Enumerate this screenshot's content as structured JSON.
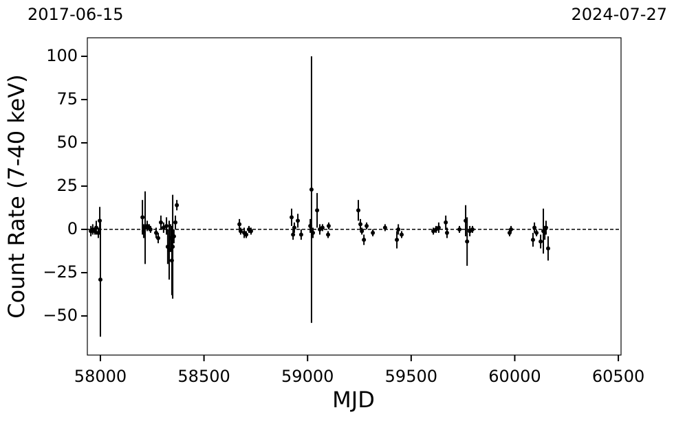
{
  "chart_data": {
    "type": "scatter",
    "top_left_label": "2017-06-15",
    "top_right_label": "2024-07-27",
    "x_label": "MJD",
    "y_label": "Count Rate (7-40 keV)",
    "color": "#000000",
    "hline": 0,
    "xlim": [
      57937,
      60513
    ],
    "ylim": [
      -72.6,
      110.7
    ],
    "xticks": [
      58000,
      58500,
      59000,
      59500,
      60000,
      60500
    ],
    "yticks": [
      {
        "value": -50,
        "label": "−50"
      },
      {
        "value": -25,
        "label": "−25"
      },
      0,
      25,
      50,
      75,
      100
    ],
    "x": [
      57954,
      57963,
      57973,
      57980,
      57990,
      57997,
      58000,
      58203,
      58209,
      58216,
      58226,
      58236,
      58242,
      58269,
      58279,
      58292,
      58305,
      58319,
      58325,
      58332,
      58339,
      58345,
      58349,
      58355,
      58362,
      58369,
      58671,
      58677,
      58694,
      58704,
      58717,
      58727,
      58923,
      58930,
      58936,
      58953,
      58969,
      59013,
      59019,
      59026,
      59046,
      59059,
      59072,
      59099,
      59102,
      59245,
      59255,
      59262,
      59272,
      59285,
      59315,
      59374,
      59431,
      59438,
      59454,
      59607,
      59620,
      59633,
      59667,
      59673,
      59733,
      59763,
      59770,
      59783,
      59796,
      59975,
      59982,
      60088,
      60095,
      60105,
      60125,
      60138,
      60145,
      60151,
      60161
    ],
    "values": [
      -1,
      0,
      -1,
      1,
      -2,
      5,
      -29,
      7,
      -1,
      1,
      2,
      1,
      0,
      -2,
      -5,
      4,
      1,
      2,
      -10,
      -12,
      -5,
      -18,
      -10,
      -4,
      4,
      14,
      3,
      -1,
      -2,
      -3,
      0,
      -1,
      7,
      -3,
      1,
      5,
      -3,
      2,
      23,
      -2,
      11,
      0,
      1,
      -3,
      2,
      11,
      3,
      -1,
      -6,
      2,
      -2,
      1,
      -6,
      0,
      -3,
      -1,
      0,
      1,
      4,
      -2,
      0,
      5,
      -7,
      -1,
      0,
      -2,
      0,
      -6,
      1,
      -2,
      -7,
      -1,
      -2,
      1,
      -11
    ],
    "errors": [
      3,
      3,
      2,
      4,
      3,
      8,
      33,
      10,
      4,
      21,
      3,
      2,
      2,
      3,
      3,
      4,
      3,
      5,
      10,
      17,
      8,
      20,
      30,
      4,
      4,
      3,
      3,
      2,
      3,
      2,
      2,
      2,
      5,
      3,
      3,
      4,
      3,
      4,
      77,
      3,
      10,
      3,
      2,
      2,
      2,
      6,
      3,
      2,
      3,
      2,
      2,
      2,
      5,
      3,
      2,
      2,
      2,
      3,
      4,
      3,
      2,
      9,
      14,
      3,
      2,
      2,
      2,
      4,
      3,
      2,
      4,
      13,
      4,
      4,
      7
    ]
  }
}
